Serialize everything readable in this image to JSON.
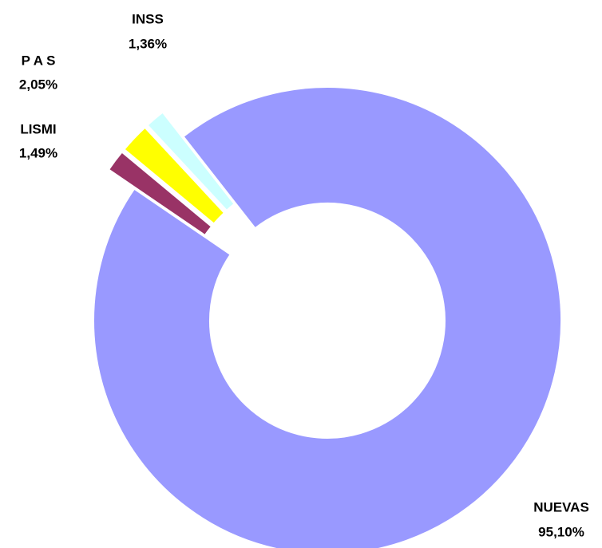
{
  "chart_data": {
    "type": "donut",
    "categories": [
      "NUEVAS",
      "LISMI",
      "P A S",
      "INSS"
    ],
    "values": [
      95.1,
      1.49,
      2.05,
      1.36
    ],
    "value_labels": [
      "95,10%",
      "1,49%",
      "2,05%",
      "1,36%"
    ],
    "colors": [
      "#9999ff",
      "#993366",
      "#ffff00",
      "#ccffff"
    ]
  }
}
